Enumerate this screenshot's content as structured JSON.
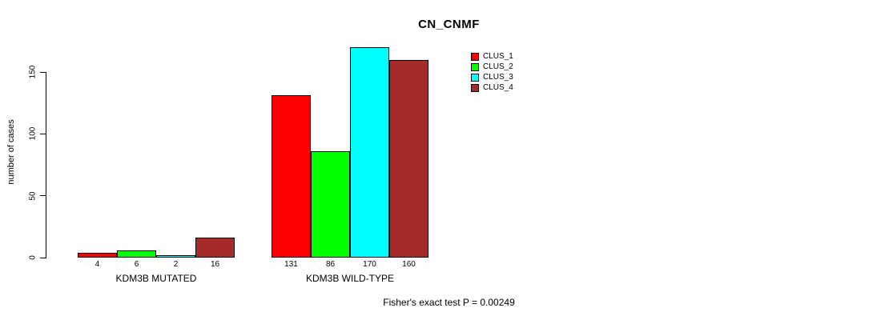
{
  "chart_data": {
    "type": "bar",
    "title": "CN_CNMF",
    "ylabel": "number of cases",
    "ylim": [
      0,
      170
    ],
    "yticks": [
      0,
      50,
      100,
      150
    ],
    "grid": false,
    "legend_position": "top-right-inside",
    "categories": [
      "KDM3B MUTATED",
      "KDM3B WILD-TYPE"
    ],
    "series": [
      {
        "name": "CLUS_1",
        "color": "#ff0000",
        "values": [
          4,
          131
        ]
      },
      {
        "name": "CLUS_2",
        "color": "#00ff00",
        "values": [
          6,
          86
        ]
      },
      {
        "name": "CLUS_3",
        "color": "#00ffff",
        "values": [
          2,
          170
        ]
      },
      {
        "name": "CLUS_4",
        "color": "#a52a2a",
        "values": [
          16,
          160
        ]
      }
    ],
    "bar_value_labels": [
      [
        "4",
        "6",
        "2",
        "16"
      ],
      [
        "131",
        "86",
        "170",
        "160"
      ]
    ],
    "footer": "Fisher's exact test P = 0.00249"
  }
}
